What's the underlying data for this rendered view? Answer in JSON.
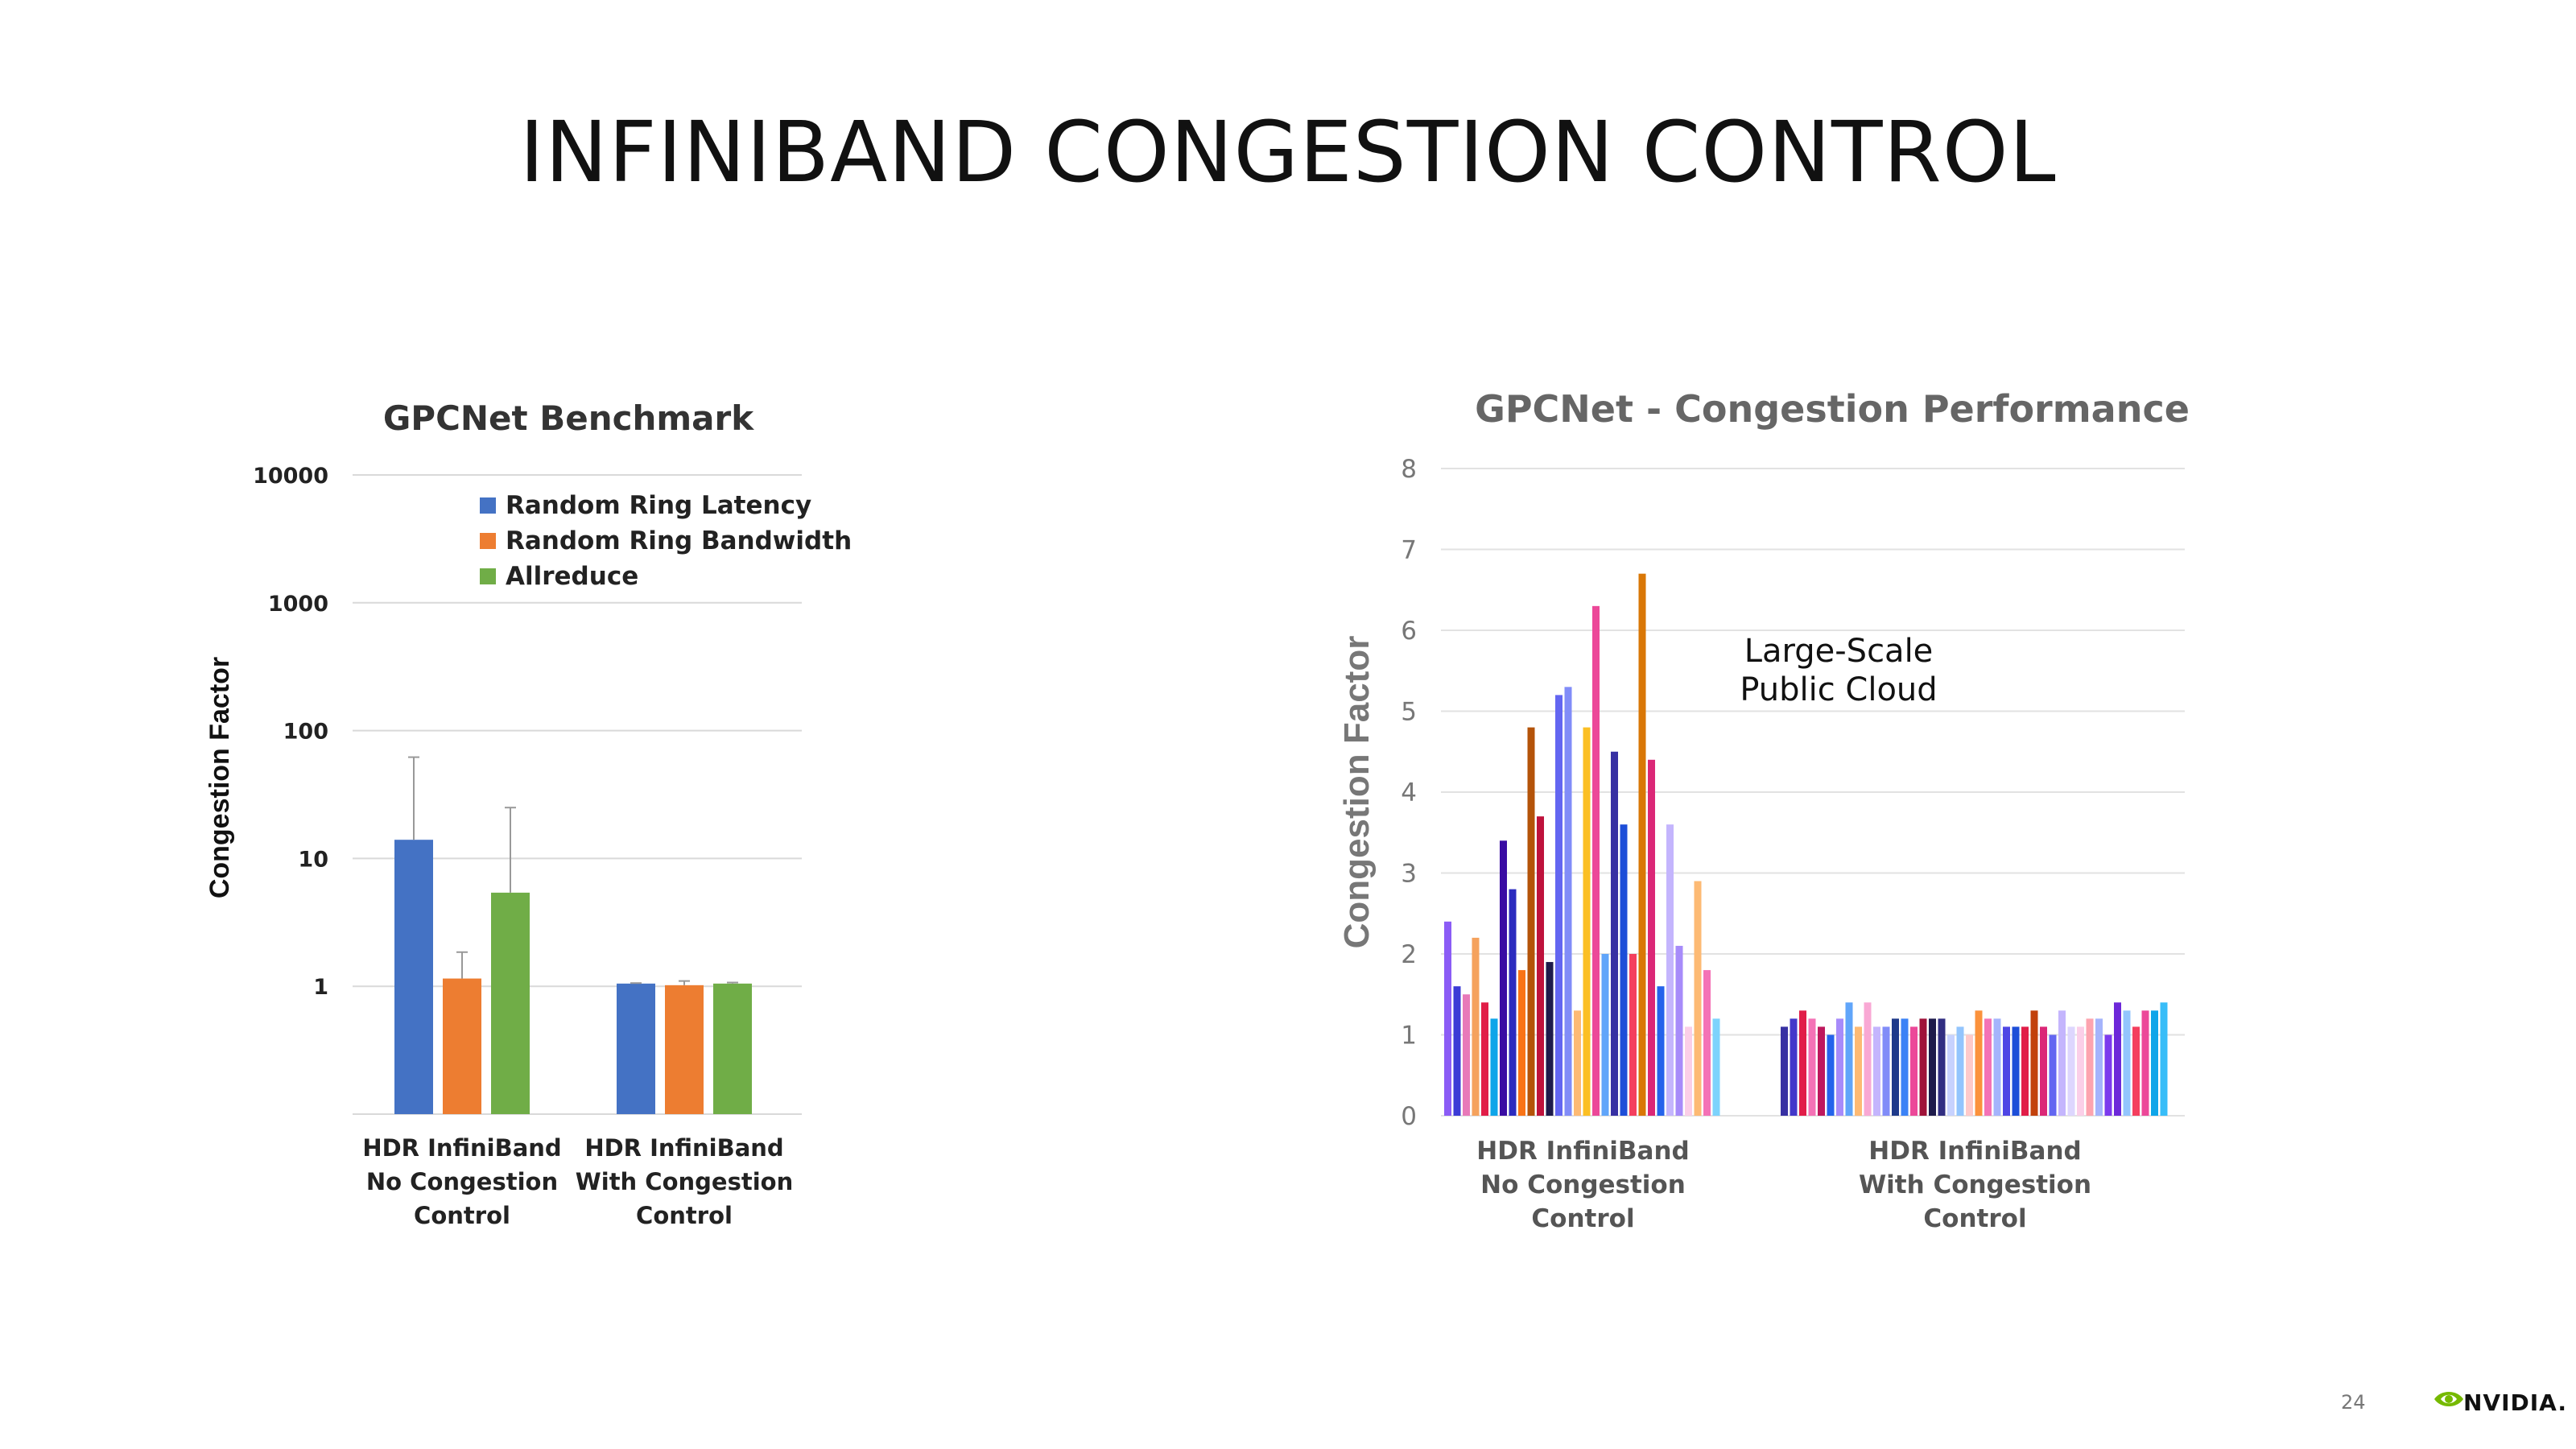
{
  "slide": {
    "title": "INFINIBAND CONGESTION CONTROL",
    "page_number": "24",
    "logo_text": "NVIDIA.",
    "logo_color": "#76b900"
  },
  "chart_data": [
    {
      "type": "bar",
      "title": "GPCNet Benchmark",
      "ylabel": "Congestion Factor",
      "y_scale": "log",
      "yticks": [
        1,
        10,
        100,
        1000,
        10000
      ],
      "ytick_labels": [
        "1",
        "10",
        "100",
        "1000",
        "10000"
      ],
      "ylim": [
        0.1,
        10000
      ],
      "grid": true,
      "legend_position": "top",
      "categories": [
        "HDR InfiniBand\nNo Congestion\nControl",
        "HDR InfiniBand\nWith Congestion\nControl"
      ],
      "series": [
        {
          "name": "Random Ring Latency",
          "color": "#4472c4",
          "values": [
            14,
            1.05
          ],
          "error_upper": [
            62,
            1.06
          ]
        },
        {
          "name": "Random Ring Bandwidth",
          "color": "#ed7d31",
          "values": [
            1.15,
            1.02
          ],
          "error_upper": [
            1.85,
            1.1
          ]
        },
        {
          "name": "Allreduce",
          "color": "#70ad47",
          "values": [
            5.4,
            1.05
          ],
          "error_upper": [
            25,
            1.07
          ]
        }
      ]
    },
    {
      "type": "bar",
      "title": "GPCNet - Congestion Performance",
      "ylabel": "Congestion Factor",
      "ylim": [
        0,
        8
      ],
      "yticks": [
        0,
        1,
        2,
        3,
        4,
        5,
        6,
        7,
        8
      ],
      "grid": true,
      "annotation": "Large-Scale\nPublic Cloud",
      "categories": [
        "HDR InfiniBand\nNo Congestion\nControl",
        "HDR InfiniBand\nWith Congestion\nControl"
      ],
      "groups": [
        {
          "values": [
            2.4,
            1.6,
            1.5,
            2.2,
            1.4,
            1.2,
            3.4,
            2.8,
            1.8,
            4.8,
            3.7,
            1.9,
            5.2,
            5.3,
            1.3,
            4.8,
            6.3,
            2.0,
            4.5,
            3.6,
            2.0,
            6.7,
            4.4,
            1.6,
            3.6,
            2.1,
            1.1,
            2.9,
            1.8,
            1.2
          ],
          "colors": [
            "#8b5cf6",
            "#3b3bd6",
            "#e879b9",
            "#f5a25d",
            "#e11d48",
            "#0ea5e9",
            "#3a0ca3",
            "#2b2bbf",
            "#f97316",
            "#b45309",
            "#be123c",
            "#1e1b4b",
            "#6366f1",
            "#818cf8",
            "#fdba74",
            "#fbbf24",
            "#ec4899",
            "#60a5fa",
            "#3730a3",
            "#1d4ed8",
            "#f43f5e",
            "#d97706",
            "#db2777",
            "#2563eb",
            "#c4b5fd",
            "#a78bfa",
            "#fbcfe8",
            "#fdba74",
            "#f472b6",
            "#7dd3fc"
          ]
        },
        {
          "values": [
            1.1,
            1.2,
            1.3,
            1.2,
            1.1,
            1.0,
            1.2,
            1.4,
            1.1,
            1.4,
            1.1,
            1.1,
            1.2,
            1.2,
            1.1,
            1.2,
            1.2,
            1.2,
            1.0,
            1.1,
            1.0,
            1.3,
            1.2,
            1.2,
            1.1,
            1.1,
            1.1,
            1.3,
            1.1,
            1.0,
            1.3,
            1.1,
            1.1,
            1.2,
            1.2,
            1.0,
            1.4,
            1.3,
            1.1,
            1.3,
            1.3,
            1.4
          ],
          "colors": [
            "#3730a3",
            "#4338ca",
            "#e11d48",
            "#f472b6",
            "#be185d",
            "#2563eb",
            "#a78bfa",
            "#60a5fa",
            "#fdba74",
            "#f9a8d4",
            "#c4b5fd",
            "#818cf8",
            "#1e3a8a",
            "#3b82f6",
            "#ec4899",
            "#9f1239",
            "#1e1b4b",
            "#312e81",
            "#c7d2fe",
            "#93c5fd",
            "#fecaca",
            "#fb923c",
            "#f472b6",
            "#a5b4fc",
            "#4f46e5",
            "#1d4ed8",
            "#e11d48",
            "#c2410c",
            "#db2777",
            "#6366f1",
            "#c4b5fd",
            "#ddd6fe",
            "#fbcfe8",
            "#fda4af",
            "#a5b4fc",
            "#7c3aed",
            "#6d28d9",
            "#93c5fd",
            "#f43f5e",
            "#ec4899",
            "#0ea5e9",
            "#38bdf8"
          ]
        }
      ]
    }
  ]
}
